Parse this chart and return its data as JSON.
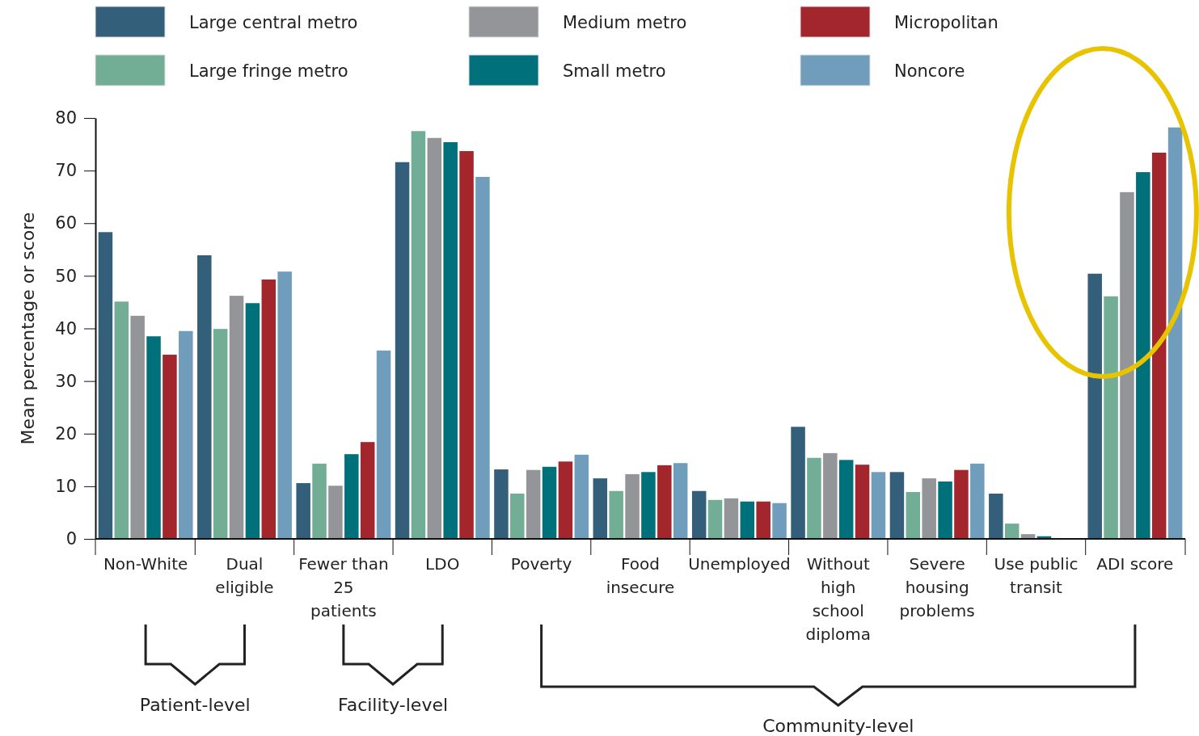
{
  "chart_data": {
    "type": "bar",
    "ylabel": "Mean percentage or score",
    "categories": [
      "Non-White",
      "Dual eligible",
      "Fewer than 25 patients",
      "LDO",
      "Poverty",
      "Food insecure",
      "Unemployed",
      "Without high school diploma",
      "Severe housing problems",
      "Use public transit",
      "ADI score"
    ],
    "series": [
      {
        "name": "Large central metro",
        "color": "#335f7a",
        "values": [
          58.3,
          53.9,
          10.6,
          71.6,
          13.2,
          11.5,
          9.1,
          21.3,
          12.7,
          8.6,
          50.4
        ]
      },
      {
        "name": "Large fringe metro",
        "color": "#72ad96",
        "values": [
          45.1,
          39.9,
          14.3,
          77.5,
          8.6,
          9.1,
          7.4,
          15.4,
          8.9,
          2.9,
          46.1
        ]
      },
      {
        "name": "Medium metro",
        "color": "#939598",
        "values": [
          42.4,
          46.2,
          10.1,
          76.2,
          13.1,
          12.3,
          7.7,
          16.3,
          11.5,
          0.9,
          65.9
        ]
      },
      {
        "name": "Small metro",
        "color": "#00707a",
        "values": [
          38.5,
          44.8,
          16.1,
          75.4,
          13.7,
          12.7,
          7.1,
          15.0,
          10.9,
          0.5,
          69.7
        ]
      },
      {
        "name": "Micropolitan",
        "color": "#a3262d",
        "values": [
          35.0,
          49.3,
          18.4,
          73.7,
          14.7,
          14.0,
          7.1,
          14.1,
          13.1,
          null,
          73.4
        ]
      },
      {
        "name": "Noncore",
        "color": "#6f9dbb",
        "values": [
          39.5,
          50.8,
          35.8,
          68.8,
          16.0,
          14.4,
          6.8,
          12.7,
          14.3,
          null,
          78.2
        ]
      }
    ],
    "ylim": [
      0,
      80
    ],
    "yticks": [
      0,
      10,
      20,
      30,
      40,
      50,
      60,
      70,
      80
    ],
    "legend": "top",
    "grid": false,
    "annotations": [
      "Patient-level",
      "Facility-level",
      "Community-level"
    ]
  }
}
